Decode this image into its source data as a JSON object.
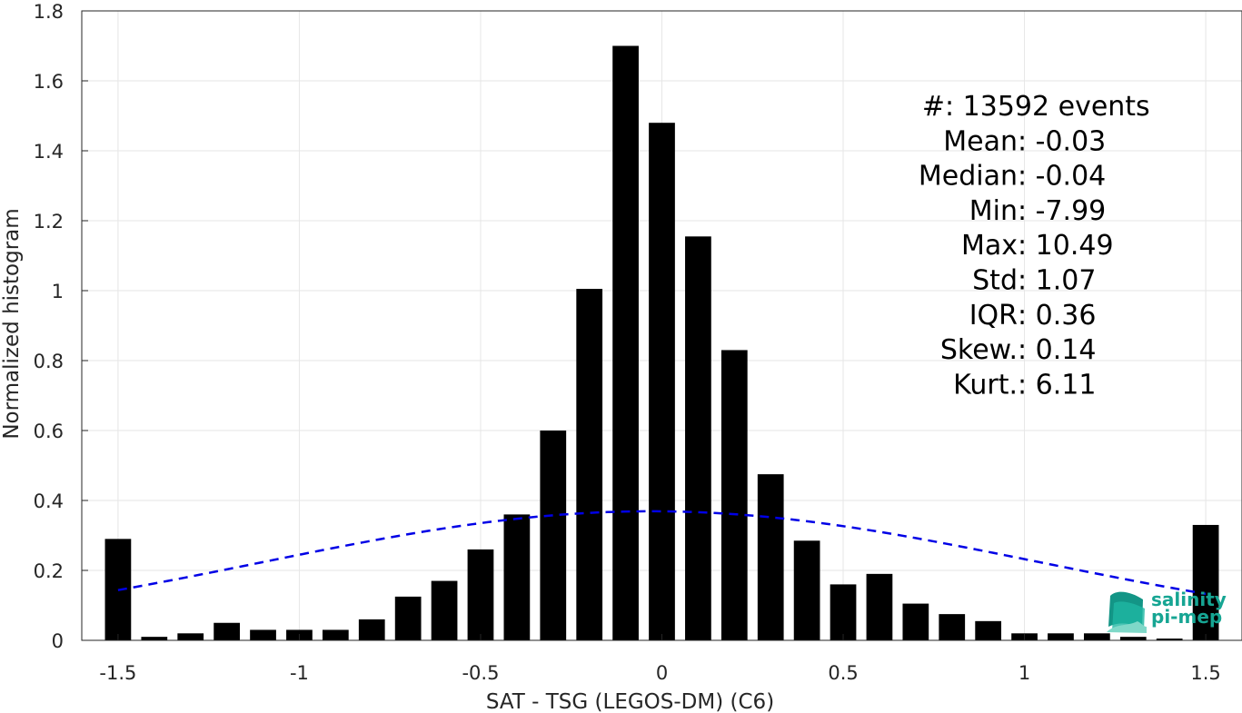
{
  "chart_data": {
    "type": "bar",
    "xlabel": "SAT - TSG (LEGOS-DM) (C6)",
    "ylabel": "Normalized histogram",
    "xlim": [
      -1.6,
      1.6
    ],
    "ylim": [
      0,
      1.8
    ],
    "xticks": [
      -1.5,
      -1,
      -0.5,
      0,
      0.5,
      1,
      1.5
    ],
    "xtick_labels": [
      "-1.5",
      "-1",
      "-0.5",
      "0",
      "0.5",
      "1",
      "1.5"
    ],
    "yticks": [
      0,
      0.2,
      0.4,
      0.6,
      0.8,
      1,
      1.2,
      1.4,
      1.6,
      1.8
    ],
    "ytick_labels": [
      "0",
      "0.2",
      "0.4",
      "0.6",
      "0.8",
      "1",
      "1.2",
      "1.4",
      "1.6",
      "1.8"
    ],
    "grid": true,
    "bar_color": "#000000",
    "bins": [
      -1.5,
      -1.4,
      -1.3,
      -1.2,
      -1.1,
      -1.0,
      -0.9,
      -0.8,
      -0.7,
      -0.6,
      -0.5,
      -0.4,
      -0.3,
      -0.2,
      -0.1,
      0.0,
      0.1,
      0.2,
      0.3,
      0.4,
      0.5,
      0.6,
      0.7,
      0.8,
      0.9,
      1.0,
      1.1,
      1.2,
      1.3,
      1.4,
      1.5
    ],
    "values": [
      0.29,
      0.01,
      0.02,
      0.05,
      0.03,
      0.03,
      0.03,
      0.06,
      0.125,
      0.17,
      0.26,
      0.36,
      0.6,
      1.005,
      1.7,
      1.48,
      1.155,
      0.83,
      0.475,
      0.285,
      0.16,
      0.19,
      0.105,
      0.075,
      0.055,
      0.02,
      0.02,
      0.02,
      0.01,
      0.005,
      0.33
    ],
    "fit": {
      "type": "normal",
      "line_style": "dashed",
      "color": "#0000e6",
      "x_range": [
        -1.5,
        1.5
      ]
    },
    "stats": [
      {
        "key": "#  ",
        "sep": " : ",
        "value": "13592 events"
      },
      {
        "key": "Mean",
        "sep": " : ",
        "value": "-0.03"
      },
      {
        "key": "Median",
        "sep": " : ",
        "value": "-0.04"
      },
      {
        "key": "Min",
        "sep": " : ",
        "value": "-7.99"
      },
      {
        "key": "Max",
        "sep": " : ",
        "value": "10.49"
      },
      {
        "key": "Std",
        "sep": " : ",
        "value": "1.07"
      },
      {
        "key": "IQR",
        "sep": " : ",
        "value": "0.36"
      },
      {
        "key": "Skew.",
        "sep": " : ",
        "value": "0.14"
      },
      {
        "key": "Kurt.",
        "sep": " : ",
        "value": "6.11"
      }
    ]
  },
  "logo": {
    "line1": "salinity",
    "line2": "pi-mep",
    "color": "#16a593"
  }
}
